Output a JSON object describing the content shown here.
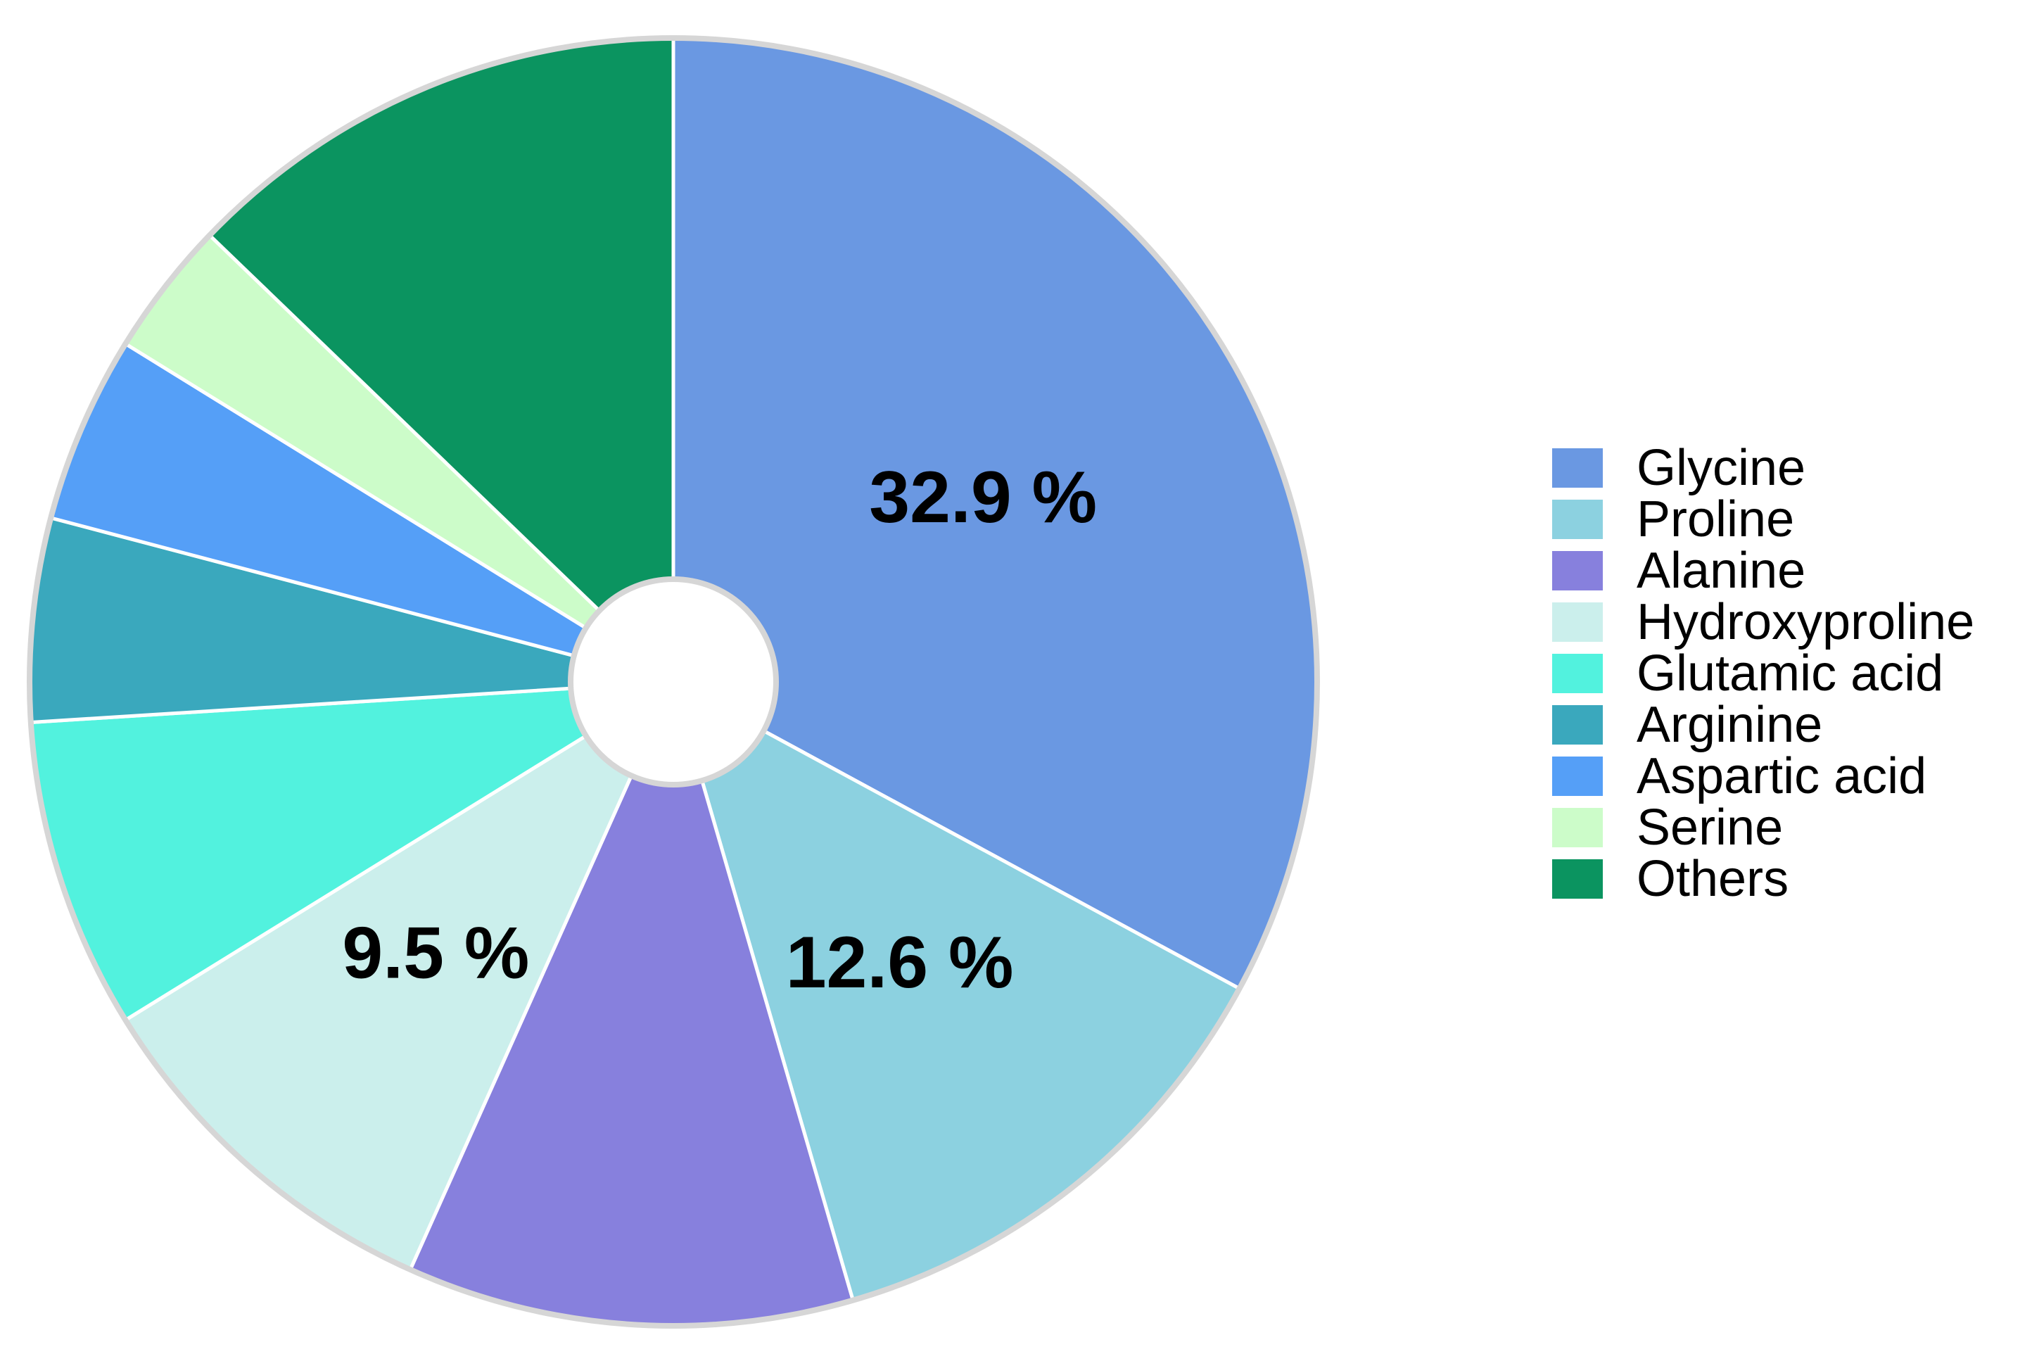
{
  "chart_data": {
    "type": "pie",
    "title": "",
    "legend_position": "right",
    "slices": [
      {
        "label": "Glycine",
        "value": 32.9,
        "color": "#6a98e2",
        "data_label": "32.9 %"
      },
      {
        "label": "Proline",
        "value": 12.6,
        "color": "#8cd1e0",
        "data_label": "12.6 %"
      },
      {
        "label": "Alanine",
        "value": 11.2,
        "color": "#8780dd",
        "data_label": ""
      },
      {
        "label": "Hydroxyproline",
        "value": 9.5,
        "color": "#cbefec",
        "data_label": "9.5 %"
      },
      {
        "label": "Glutamic acid",
        "value": 7.8,
        "color": "#52f2de",
        "data_label": ""
      },
      {
        "label": "Arginine",
        "value": 5.1,
        "color": "#3aa8bd",
        "data_label": ""
      },
      {
        "label": "Aspartic acid",
        "value": 4.7,
        "color": "#559ff7",
        "data_label": ""
      },
      {
        "label": "Serine",
        "value": 3.4,
        "color": "#ccfcc9",
        "data_label": ""
      },
      {
        "label": "Others",
        "value": 12.8,
        "color": "#0b9460",
        "data_label": ""
      }
    ]
  }
}
